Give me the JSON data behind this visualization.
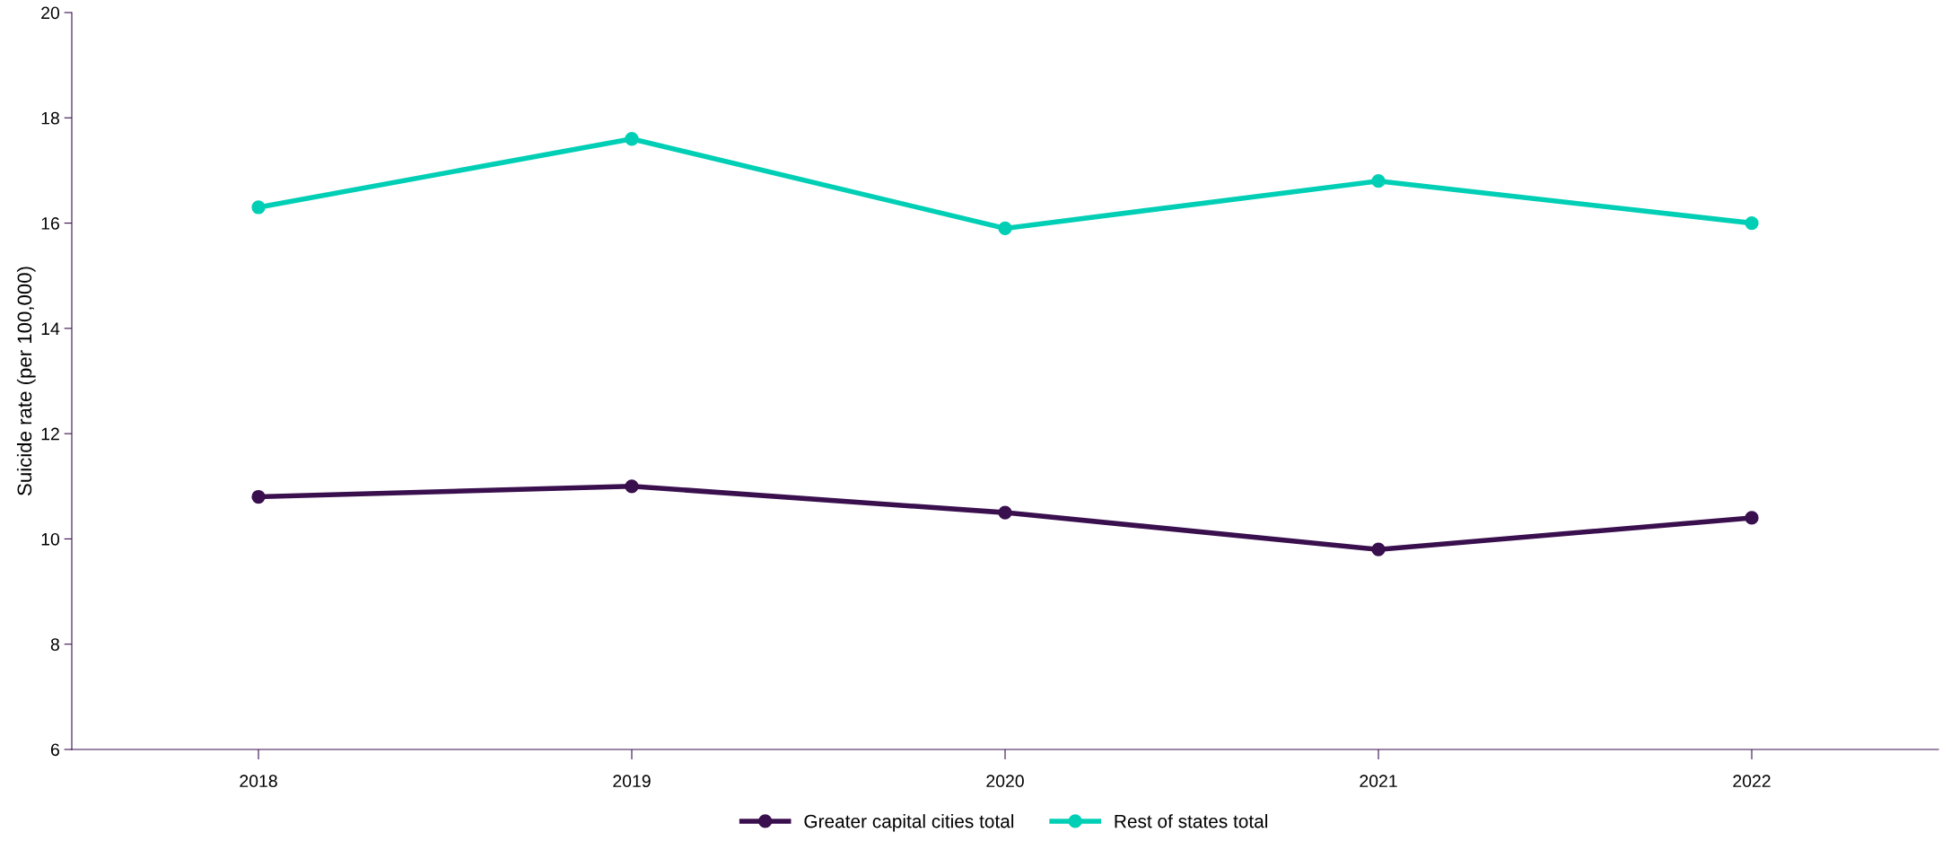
{
  "chart_data": {
    "type": "line",
    "ylabel": "Suicide rate (per 100,000)",
    "categories": [
      "2018",
      "2019",
      "2020",
      "2021",
      "2022"
    ],
    "series": [
      {
        "name": "Greater capital cities total",
        "color": "#3a0f4e",
        "values": [
          10.8,
          11.0,
          10.5,
          9.8,
          10.4
        ]
      },
      {
        "name": "Rest of states total",
        "color": "#00cfb5",
        "values": [
          16.3,
          17.6,
          15.9,
          16.8,
          16.0
        ]
      }
    ],
    "ylim": [
      6,
      20
    ],
    "yticks": [
      6,
      8,
      10,
      12,
      14,
      16,
      18,
      20
    ],
    "grid": false,
    "legend": "bottom",
    "marker": "circle",
    "line_style": "solid"
  }
}
